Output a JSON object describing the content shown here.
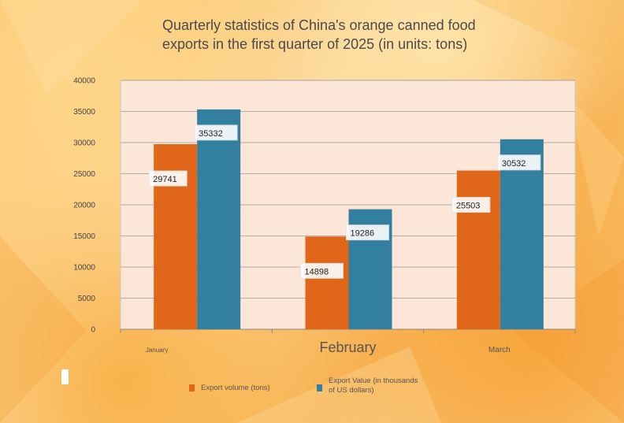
{
  "chart_data": {
    "type": "bar",
    "title_lines": [
      "Quarterly statistics of China's orange canned food",
      "exports in the first quarter of 2025 (in units: tons)"
    ],
    "categories": [
      "January",
      "February",
      "March"
    ],
    "series": [
      {
        "name": "Export volume (tons)",
        "values": [
          29741,
          14898,
          25503
        ],
        "color": "#e0661a"
      },
      {
        "name": "Export Value (in thousands of US dollars)",
        "values": [
          35332,
          19286,
          30532
        ],
        "color": "#327f9f"
      }
    ],
    "y_ticks": [
      "0",
      "5000",
      "10000",
      "15000",
      "20000",
      "25000",
      "30000",
      "35000",
      "40000"
    ],
    "ylim": [
      0,
      40000
    ],
    "grid": true,
    "legend_placement": "bottom",
    "plot_background": "#fbe6d8"
  }
}
